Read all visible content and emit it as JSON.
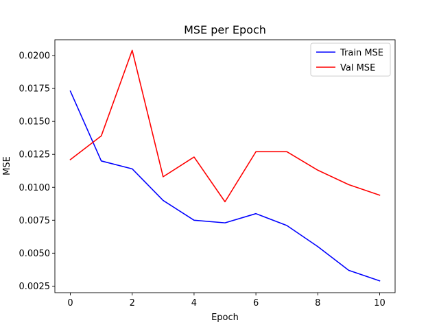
{
  "chart_data": {
    "type": "line",
    "title": "MSE per Epoch",
    "xlabel": "Epoch",
    "ylabel": "MSE",
    "xlim": [
      -0.5,
      10.5
    ],
    "ylim": [
      0.002,
      0.0212
    ],
    "x_ticks": [
      0,
      2,
      4,
      6,
      8,
      10
    ],
    "y_ticks": [
      0.0025,
      0.005,
      0.0075,
      0.01,
      0.0125,
      0.015,
      0.0175,
      0.02
    ],
    "y_tick_labels": [
      "0.0025",
      "0.0050",
      "0.0075",
      "0.0100",
      "0.0125",
      "0.0150",
      "0.0175",
      "0.0200"
    ],
    "x": [
      0,
      1,
      2,
      3,
      4,
      5,
      6,
      7,
      8,
      9,
      10
    ],
    "grid": false,
    "legend_position": "top-right",
    "series": [
      {
        "name": "Train MSE",
        "color": "#0000ff",
        "values": [
          0.0173,
          0.012,
          0.0114,
          0.009,
          0.0075,
          0.0073,
          0.008,
          0.0071,
          0.0055,
          0.0037,
          0.0029
        ]
      },
      {
        "name": "Val MSE",
        "color": "#ff0000",
        "values": [
          0.0121,
          0.0139,
          0.0204,
          0.0108,
          0.0123,
          0.0089,
          0.0127,
          0.0127,
          0.0113,
          0.0102,
          0.0094
        ]
      }
    ]
  }
}
